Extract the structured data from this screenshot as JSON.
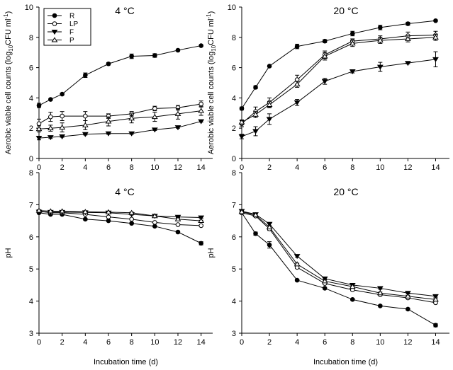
{
  "chart_data": [
    {
      "type": "line",
      "title": "4 °C",
      "ylabel": "Aerobic viable cell counts (log10CFU ml-1)",
      "ylabel_parts": [
        "Aerobic viable cell counts (log",
        "10",
        "CFU ml",
        "-1",
        ")"
      ],
      "xlabel": "",
      "xlim": [
        0,
        15
      ],
      "ylim": [
        0,
        10
      ],
      "xticks": [
        0,
        2,
        4,
        6,
        8,
        10,
        12,
        14
      ],
      "yticks": [
        0,
        2,
        4,
        6,
        8,
        10
      ],
      "legend": {
        "placement": "top-left",
        "entries": [
          "R",
          "LP",
          "F",
          "P"
        ]
      },
      "series": [
        {
          "name": "R",
          "marker": "filled-circle",
          "x": [
            0,
            1,
            2,
            4,
            6,
            8,
            10,
            12,
            14
          ],
          "y": [
            3.5,
            3.9,
            4.25,
            5.5,
            6.25,
            6.75,
            6.8,
            7.15,
            7.45
          ],
          "err": [
            0.15,
            0.05,
            0.05,
            0.15,
            0.08,
            0.15,
            0.12,
            0.05,
            0.05
          ]
        },
        {
          "name": "LP",
          "marker": "open-circle",
          "x": [
            0,
            1,
            2,
            4,
            6,
            8,
            10,
            12,
            14
          ],
          "y": [
            2.3,
            2.75,
            2.8,
            2.8,
            2.8,
            2.95,
            3.3,
            3.35,
            3.6
          ],
          "err": [
            0.3,
            0.3,
            0.3,
            0.3,
            0.15,
            0.15,
            0.15,
            0.15,
            0.2
          ]
        },
        {
          "name": "F",
          "marker": "filled-triangle-down",
          "x": [
            0,
            1,
            2,
            4,
            6,
            8,
            10,
            12,
            14
          ],
          "y": [
            1.35,
            1.4,
            1.45,
            1.6,
            1.65,
            1.65,
            1.9,
            2.05,
            2.45
          ],
          "err": [
            0.12,
            0.08,
            0.05,
            0.05,
            0.05,
            0.05,
            0.05,
            0.05,
            0.05
          ]
        },
        {
          "name": "P",
          "marker": "open-triangle-up",
          "x": [
            0,
            1,
            2,
            4,
            6,
            8,
            10,
            12,
            14
          ],
          "y": [
            1.95,
            2.0,
            2.05,
            2.2,
            2.45,
            2.65,
            2.75,
            2.95,
            3.15
          ],
          "err": [
            0.2,
            0.2,
            0.3,
            0.3,
            0.3,
            0.3,
            0.3,
            0.35,
            0.3
          ]
        }
      ]
    },
    {
      "type": "line",
      "title": "20 °C",
      "ylabel": "Aerobic viable cell counts (log10CFU ml-1)",
      "ylabel_parts": [
        "Aerobic viable cell counts (log",
        "10",
        "CFU ml",
        "-1",
        ")"
      ],
      "xlabel": "",
      "xlim": [
        0,
        15
      ],
      "ylim": [
        0,
        10
      ],
      "xticks": [
        0,
        2,
        4,
        6,
        8,
        10,
        12,
        14
      ],
      "yticks": [
        0,
        2,
        4,
        6,
        8,
        10
      ],
      "series": [
        {
          "name": "R",
          "marker": "filled-circle",
          "x": [
            0,
            1,
            2,
            4,
            6,
            8,
            10,
            12,
            14
          ],
          "y": [
            3.3,
            4.7,
            6.1,
            7.4,
            7.75,
            8.25,
            8.65,
            8.9,
            9.1
          ],
          "err": [
            0.1,
            0.1,
            0.05,
            0.15,
            0.1,
            0.15,
            0.15,
            0.1,
            0.05
          ]
        },
        {
          "name": "LP",
          "marker": "open-circle",
          "x": [
            0,
            1,
            2,
            4,
            6,
            8,
            10,
            12,
            14
          ],
          "y": [
            2.3,
            3.1,
            3.7,
            5.2,
            6.85,
            7.75,
            7.9,
            8.1,
            8.15
          ],
          "err": [
            0.2,
            0.3,
            0.3,
            0.3,
            0.25,
            0.15,
            0.2,
            0.25,
            0.25
          ]
        },
        {
          "name": "F",
          "marker": "filled-triangle-down",
          "x": [
            0,
            1,
            2,
            4,
            6,
            8,
            10,
            12,
            14
          ],
          "y": [
            1.45,
            1.8,
            2.6,
            3.7,
            5.1,
            5.75,
            6.05,
            6.3,
            6.55
          ],
          "err": [
            0.15,
            0.3,
            0.35,
            0.2,
            0.2,
            0.1,
            0.3,
            0.05,
            0.5
          ]
        },
        {
          "name": "P",
          "marker": "open-triangle-up",
          "x": [
            0,
            1,
            2,
            4,
            6,
            8,
            10,
            12,
            14
          ],
          "y": [
            2.4,
            2.9,
            3.55,
            4.9,
            6.75,
            7.6,
            7.8,
            7.9,
            8.0
          ],
          "err": [
            0.15,
            0.2,
            0.2,
            0.2,
            0.25,
            0.2,
            0.2,
            0.2,
            0.2
          ]
        }
      ]
    },
    {
      "type": "line",
      "title": "4 °C",
      "ylabel": "pH",
      "xlabel": "Incubation time (d)",
      "xlim": [
        0,
        15
      ],
      "ylim": [
        3,
        8
      ],
      "xticks": [
        0,
        2,
        4,
        6,
        8,
        10,
        12,
        14
      ],
      "yticks": [
        3,
        4,
        5,
        6,
        7,
        8
      ],
      "series": [
        {
          "name": "R",
          "marker": "filled-circle",
          "x": [
            0,
            1,
            2,
            4,
            6,
            8,
            10,
            12,
            14
          ],
          "y": [
            6.75,
            6.7,
            6.7,
            6.55,
            6.5,
            6.42,
            6.33,
            6.15,
            5.8
          ],
          "err": [
            0.02,
            0.02,
            0.02,
            0.03,
            0.02,
            0.02,
            0.02,
            0.03,
            0.05
          ]
        },
        {
          "name": "LP",
          "marker": "open-circle",
          "x": [
            0,
            1,
            2,
            4,
            6,
            8,
            10,
            12,
            14
          ],
          "y": [
            6.8,
            6.75,
            6.75,
            6.7,
            6.62,
            6.55,
            6.45,
            6.38,
            6.35
          ],
          "err": [
            0.02,
            0.02,
            0.02,
            0.02,
            0.02,
            0.02,
            0.02,
            0.02,
            0.02
          ]
        },
        {
          "name": "F",
          "marker": "filled-triangle-down",
          "x": [
            0,
            1,
            2,
            4,
            6,
            8,
            10,
            12,
            14
          ],
          "y": [
            6.78,
            6.77,
            6.77,
            6.76,
            6.75,
            6.7,
            6.65,
            6.62,
            6.6
          ],
          "err": [
            0.02,
            0.02,
            0.02,
            0.02,
            0.02,
            0.02,
            0.02,
            0.02,
            0.02
          ]
        },
        {
          "name": "P",
          "marker": "open-triangle-up",
          "x": [
            0,
            1,
            2,
            4,
            6,
            8,
            10,
            12,
            14
          ],
          "y": [
            6.82,
            6.8,
            6.8,
            6.78,
            6.77,
            6.75,
            6.65,
            6.55,
            6.5
          ],
          "err": [
            0.02,
            0.02,
            0.02,
            0.02,
            0.02,
            0.02,
            0.02,
            0.02,
            0.02
          ]
        }
      ]
    },
    {
      "type": "line",
      "title": "20 °C",
      "ylabel": "pH",
      "xlabel": "Incubation time (d)",
      "xlim": [
        0,
        15
      ],
      "ylim": [
        3,
        8
      ],
      "xticks": [
        0,
        2,
        4,
        6,
        8,
        10,
        12,
        14
      ],
      "yticks": [
        3,
        4,
        5,
        6,
        7,
        8
      ],
      "series": [
        {
          "name": "R",
          "marker": "filled-circle",
          "x": [
            0,
            1,
            2,
            4,
            6,
            8,
            10,
            12,
            14
          ],
          "y": [
            6.75,
            6.1,
            5.75,
            4.65,
            4.4,
            4.05,
            3.85,
            3.75,
            3.25
          ],
          "err": [
            0.02,
            0.05,
            0.1,
            0.03,
            0.03,
            0.03,
            0.03,
            0.03,
            0.05
          ]
        },
        {
          "name": "LP",
          "marker": "open-circle",
          "x": [
            0,
            1,
            2,
            4,
            6,
            8,
            10,
            12,
            14
          ],
          "y": [
            6.75,
            6.65,
            6.25,
            5.05,
            4.55,
            4.35,
            4.2,
            4.1,
            3.95
          ],
          "err": [
            0.02,
            0.03,
            0.05,
            0.03,
            0.03,
            0.03,
            0.03,
            0.03,
            0.03
          ]
        },
        {
          "name": "F",
          "marker": "filled-triangle-down",
          "x": [
            0,
            1,
            2,
            4,
            6,
            8,
            10,
            12,
            14
          ],
          "y": [
            6.8,
            6.7,
            6.4,
            5.4,
            4.7,
            4.5,
            4.4,
            4.25,
            4.15
          ],
          "err": [
            0.02,
            0.03,
            0.05,
            0.03,
            0.03,
            0.03,
            0.03,
            0.03,
            0.03
          ]
        },
        {
          "name": "P",
          "marker": "open-triangle-up",
          "x": [
            0,
            1,
            2,
            4,
            6,
            8,
            10,
            12,
            14
          ],
          "y": [
            6.78,
            6.68,
            6.3,
            5.15,
            4.62,
            4.45,
            4.25,
            4.15,
            4.05
          ],
          "err": [
            0.02,
            0.03,
            0.05,
            0.03,
            0.03,
            0.03,
            0.03,
            0.03,
            0.03
          ]
        }
      ]
    }
  ]
}
